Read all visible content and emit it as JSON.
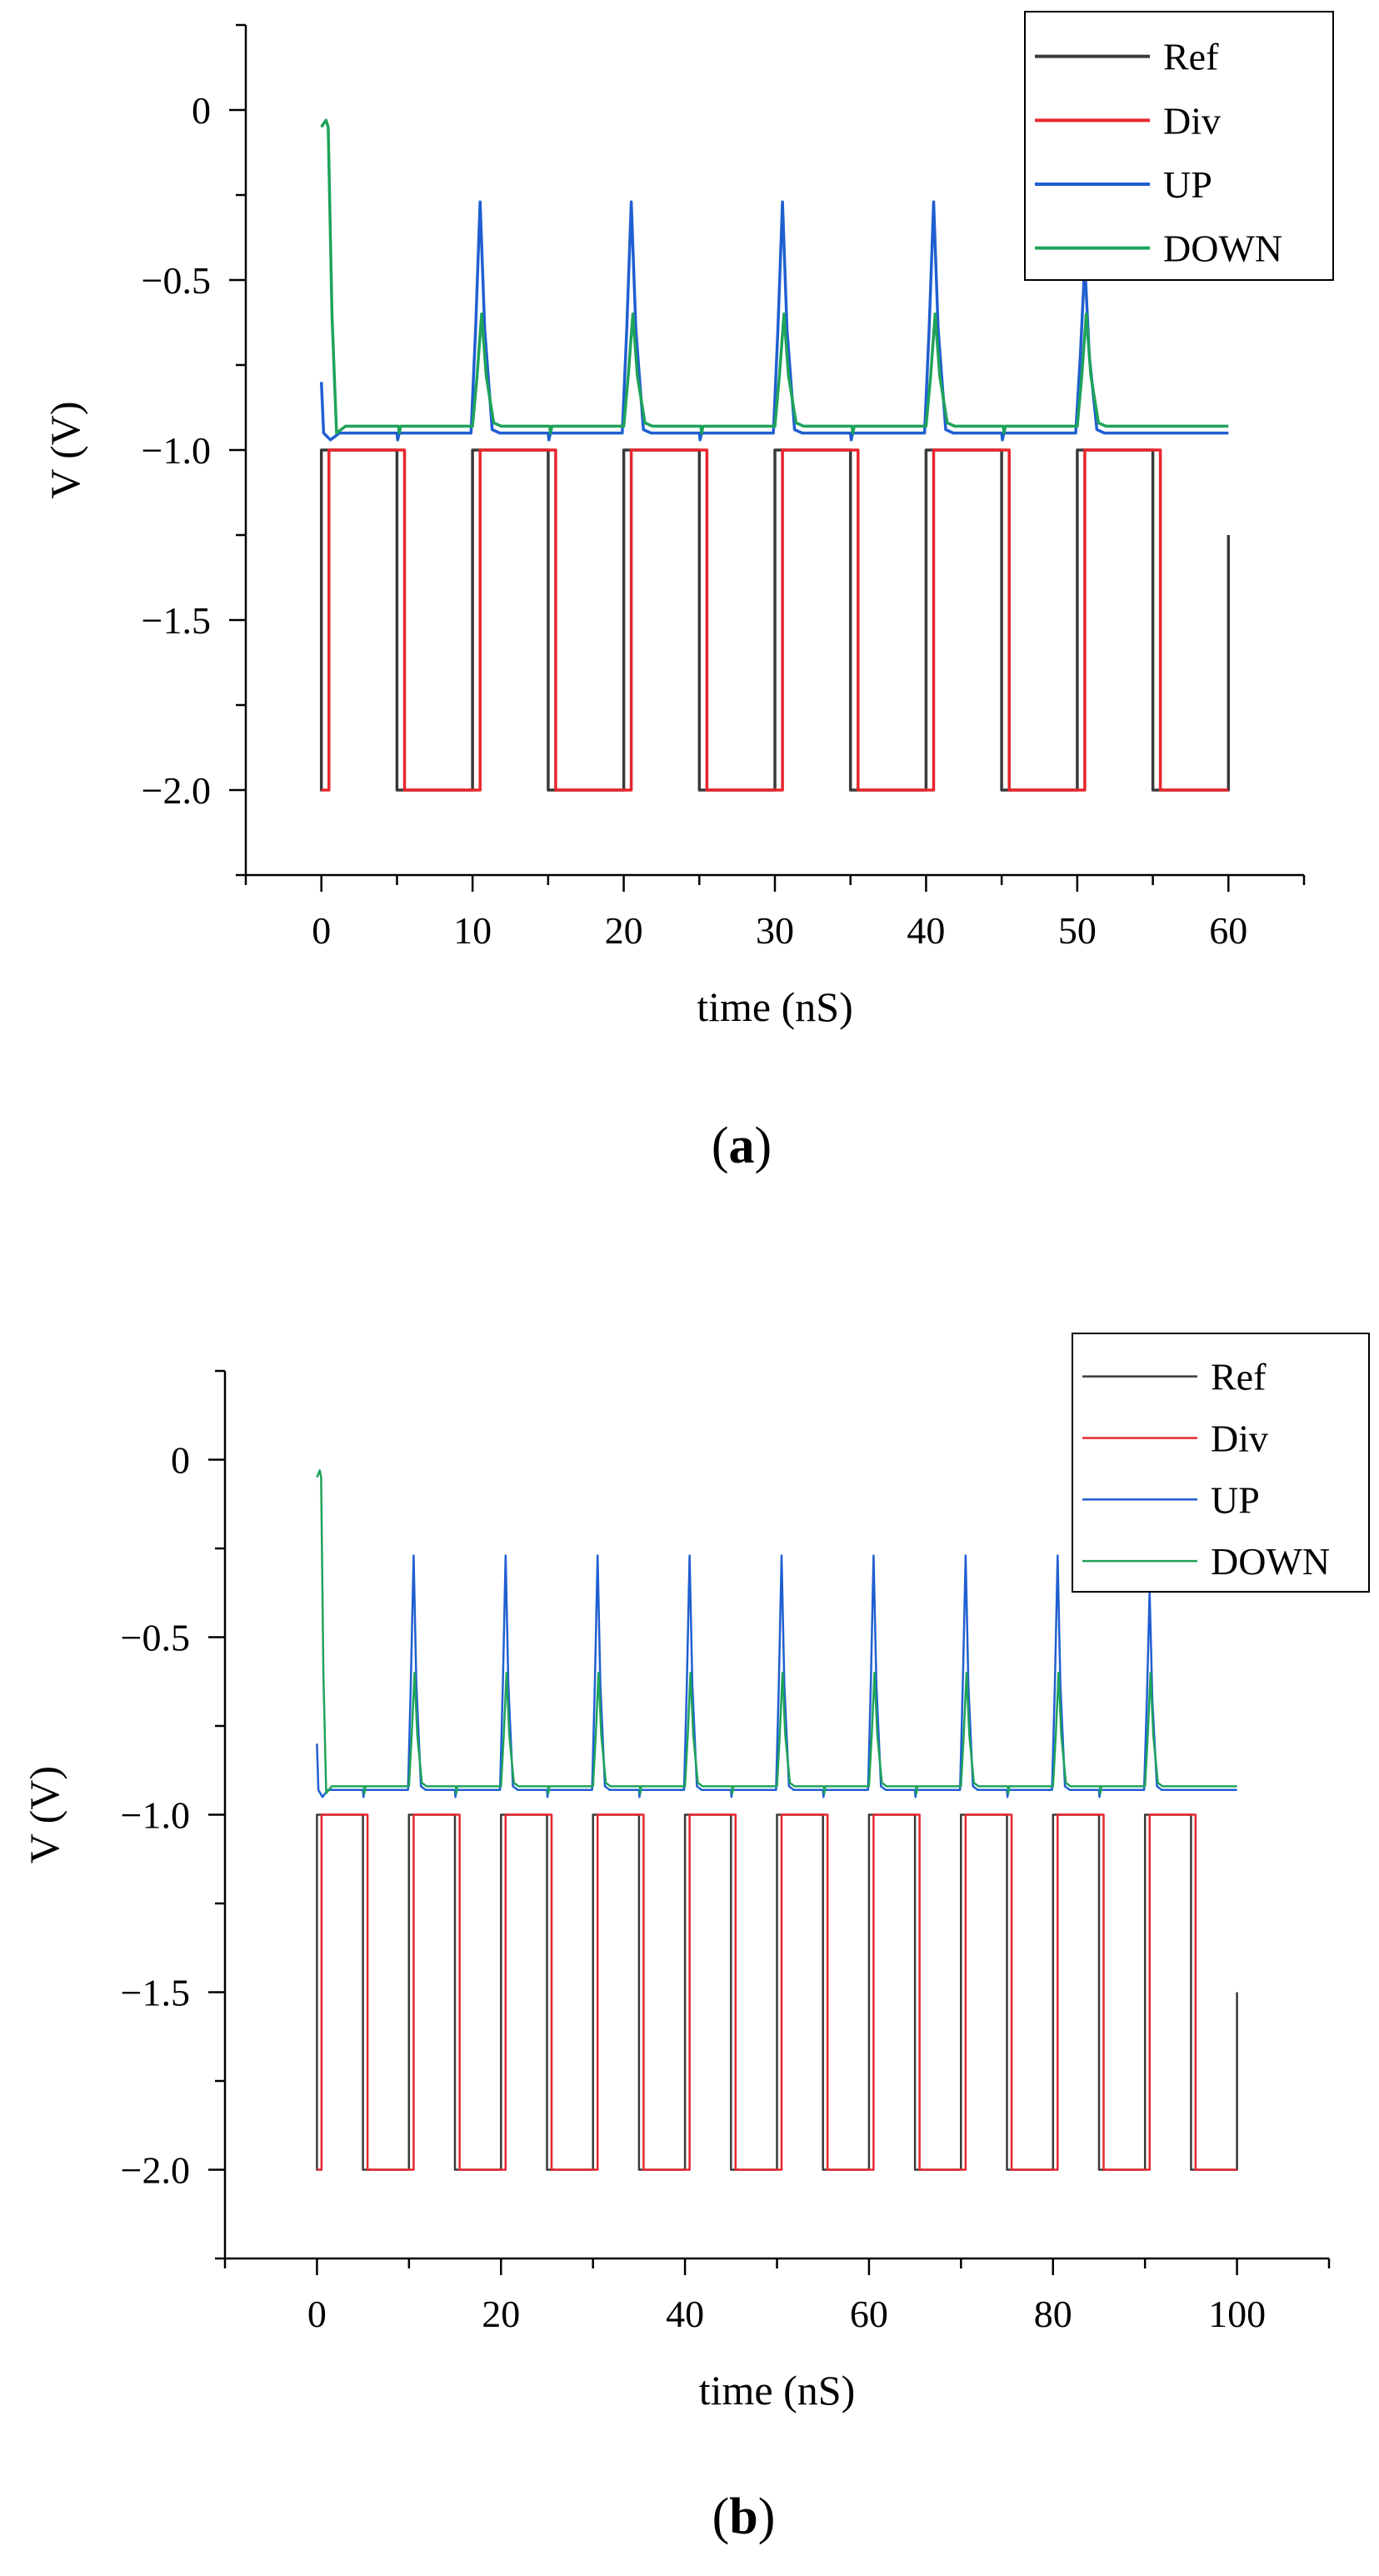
{
  "chart_data": [
    {
      "type": "line",
      "panel": "(a)",
      "caption_letter": "a",
      "title": "",
      "xlabel": "time (nS)",
      "ylabel": "V (V)",
      "xlim": [
        -5,
        65
      ],
      "ylim": [
        -2.25,
        0.25
      ],
      "xticks": [
        0,
        10,
        20,
        30,
        40,
        50,
        60
      ],
      "yticks": [
        0,
        -0.5,
        -1.0,
        -1.5,
        -2.0
      ],
      "ytick_labels": [
        "0",
        "−0.5",
        "−1.0",
        "−1.5",
        "−2.0"
      ],
      "period_ns": 10,
      "duration_ns": 60,
      "legend_position": "top-right",
      "series": [
        {
          "name": "Ref",
          "color": "#3a3a3a",
          "signal": "square",
          "high": -1.0,
          "low": -2.0,
          "start": -1.5,
          "rise_offset": 0,
          "fall_offset": 5,
          "end": -1.25
        },
        {
          "name": "Div",
          "color": "#e8262d",
          "signal": "square",
          "high": -1.0,
          "low": -2.0,
          "start": -2.0,
          "rise_offset": 0.5,
          "fall_offset": 5.5,
          "end": -2.0
        },
        {
          "name": "UP",
          "color": "#1f5fd1",
          "signal": "pulse",
          "baseline": -0.95,
          "peak": -0.27,
          "initial": -0.8,
          "peaks_at": [
            10.5,
            20.5,
            30.5,
            40.5,
            50.5
          ],
          "last_peak": -0.45
        },
        {
          "name": "DOWN",
          "color": "#1ea35a",
          "signal": "pulse",
          "baseline": -0.93,
          "peak": -0.6,
          "initial": -0.05,
          "peaks_at": [
            10.6,
            20.6,
            30.6,
            40.6,
            50.6
          ],
          "last_peak": -0.6
        }
      ]
    },
    {
      "type": "line",
      "panel": "(b)",
      "caption_letter": "b",
      "title": "",
      "xlabel": "time (nS)",
      "ylabel": "V (V)",
      "xlim": [
        -10,
        110
      ],
      "ylim": [
        -2.25,
        0.25
      ],
      "xticks": [
        0,
        20,
        40,
        60,
        80,
        100
      ],
      "yticks": [
        0,
        -0.5,
        -1.0,
        -1.5,
        -2.0
      ],
      "ytick_labels": [
        "0",
        "−0.5",
        "−1.0",
        "−1.5",
        "−2.0"
      ],
      "period_ns": 10,
      "duration_ns": 100,
      "legend_position": "top-right",
      "series": [
        {
          "name": "Ref",
          "color": "#3a3a3a",
          "signal": "square",
          "high": -1.0,
          "low": -2.0,
          "start": -1.5,
          "rise_offset": 0,
          "fall_offset": 5,
          "end": -1.5
        },
        {
          "name": "Div",
          "color": "#e8262d",
          "signal": "square",
          "high": -1.0,
          "low": -2.0,
          "start": -2.0,
          "rise_offset": 0.5,
          "fall_offset": 5.5,
          "end": -2.0
        },
        {
          "name": "UP",
          "color": "#1f5fd1",
          "signal": "pulse",
          "baseline": -0.93,
          "peak": -0.27,
          "initial": -0.8,
          "peaks_at": [
            10.5,
            20.5,
            30.5,
            40.5,
            50.5,
            60.5,
            70.5,
            80.5,
            90.5
          ],
          "last_peak": -0.37
        },
        {
          "name": "DOWN",
          "color": "#1ea35a",
          "signal": "pulse",
          "baseline": -0.92,
          "peak": -0.6,
          "initial": -0.05,
          "peaks_at": [
            10.6,
            20.6,
            30.6,
            40.6,
            50.6,
            60.6,
            70.6,
            80.6,
            90.6
          ],
          "last_peak": -0.6
        }
      ]
    }
  ]
}
